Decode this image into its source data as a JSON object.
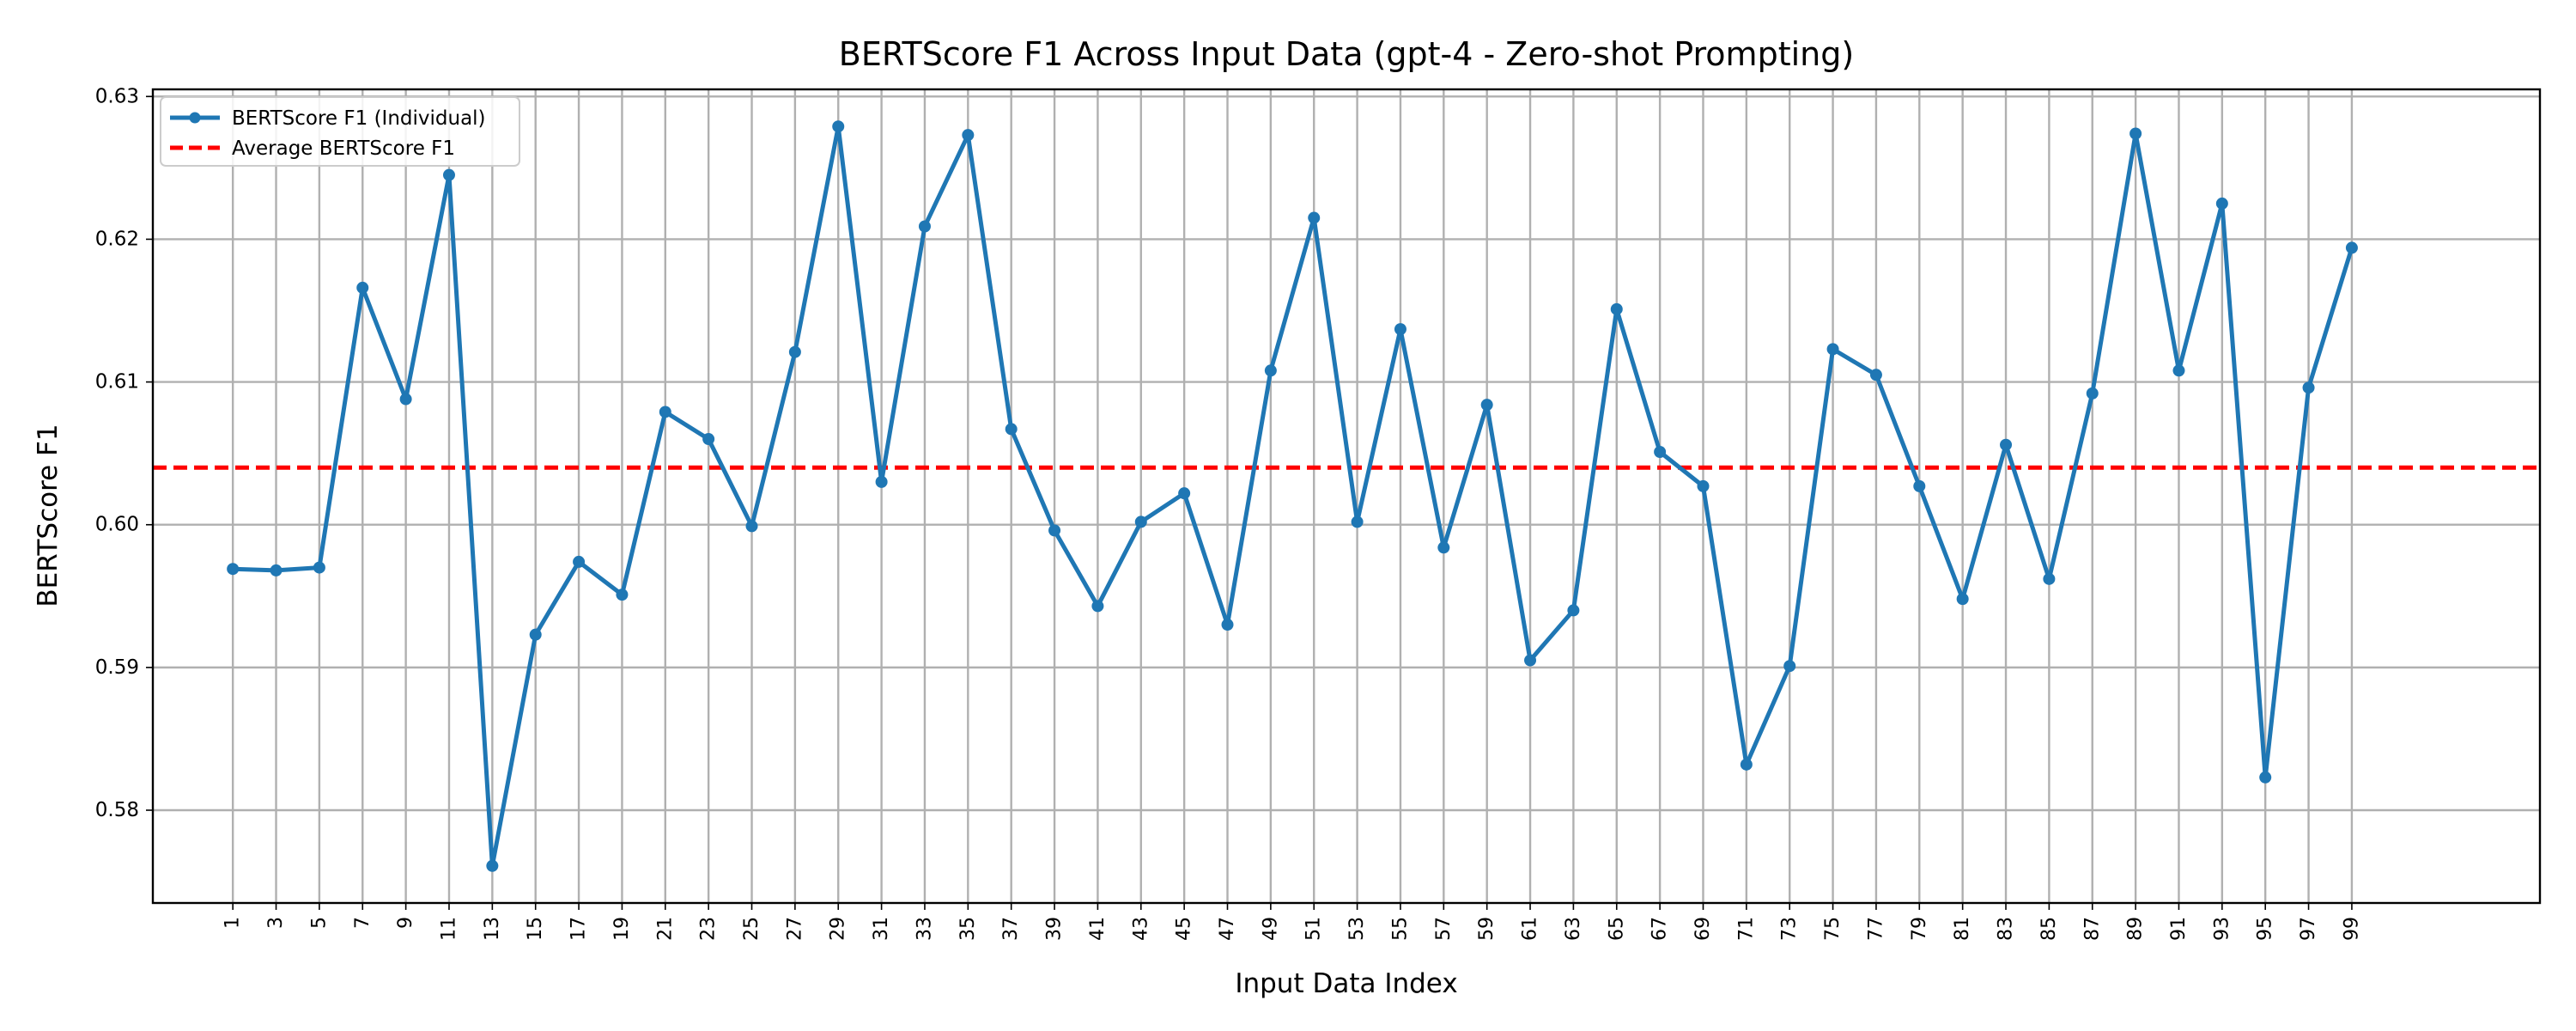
{
  "chart_data": {
    "type": "line",
    "title": "BERTScore F1 Across Input Data (gpt-4 - Zero-shot Prompting)",
    "xlabel": "Input Data Index",
    "ylabel": "BERTScore F1",
    "ylim": [
      0.5735,
      0.6305
    ],
    "xlim": [
      -2.7,
      107.7
    ],
    "yticks": [
      "0.58",
      "0.59",
      "0.60",
      "0.61",
      "0.62",
      "0.63"
    ],
    "ytick_values": [
      0.58,
      0.59,
      0.6,
      0.61,
      0.62,
      0.63
    ],
    "xticks": [
      1,
      3,
      5,
      7,
      9,
      11,
      13,
      15,
      17,
      19,
      21,
      23,
      25,
      27,
      29,
      31,
      33,
      35,
      37,
      39,
      41,
      43,
      45,
      47,
      49,
      51,
      53,
      55,
      57,
      59,
      61,
      63,
      65,
      67,
      69,
      71,
      73,
      75,
      77,
      79,
      81,
      83,
      85,
      87,
      89,
      91,
      93,
      95,
      97,
      99
    ],
    "grid": true,
    "legend_position": "top-left",
    "series": [
      {
        "name": "BERTScore F1 (Individual)",
        "color": "#1f77b4",
        "style": "solid-with-markers",
        "x": [
          1,
          3,
          5,
          7,
          9,
          11,
          13,
          15,
          17,
          19,
          21,
          23,
          25,
          27,
          29,
          31,
          33,
          35,
          37,
          39,
          41,
          43,
          45,
          47,
          49,
          51,
          53,
          55,
          57,
          59,
          61,
          63,
          65,
          67,
          69,
          71,
          73,
          75,
          77,
          79,
          81,
          83,
          85,
          87,
          89,
          91,
          93,
          95,
          97,
          99
        ],
        "values": [
          0.5969,
          0.5968,
          0.597,
          0.6166,
          0.6088,
          0.6245,
          0.5761,
          0.5923,
          0.5974,
          0.5951,
          0.6079,
          0.606,
          0.5999,
          0.6121,
          0.6279,
          0.603,
          0.6209,
          0.6273,
          0.6067,
          0.5996,
          0.5943,
          0.6002,
          0.6022,
          0.593,
          0.6108,
          0.6215,
          0.6002,
          0.6137,
          0.5984,
          0.6084,
          0.5905,
          0.594,
          0.6151,
          0.6051,
          0.6027,
          0.5832,
          0.5901,
          0.6123,
          0.6105,
          0.6027,
          0.5948,
          0.6056,
          0.5962,
          0.6092,
          0.6274,
          0.6108,
          0.6225,
          0.5823,
          0.6096,
          0.6194
        ]
      },
      {
        "name": "Average BERTScore F1",
        "color": "#ff0000",
        "style": "dashed",
        "value": 0.604
      }
    ]
  }
}
